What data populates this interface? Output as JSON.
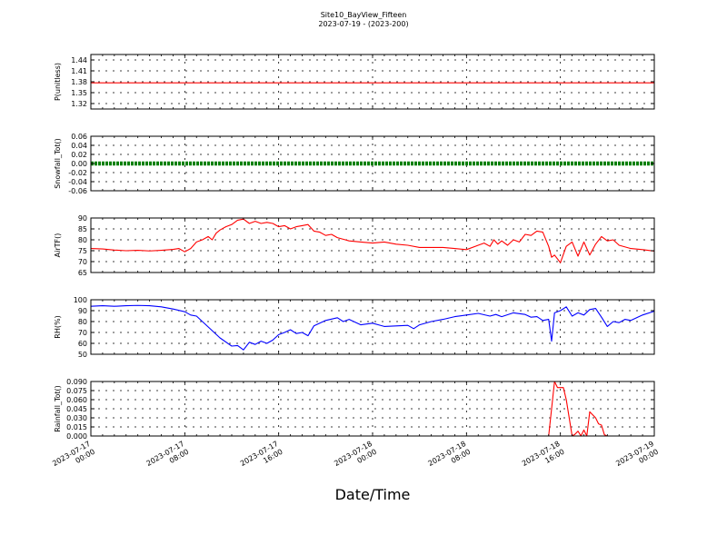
{
  "title": "Site10_BayView_Fifteen",
  "subtitle": "2023-07-19 - (2023-200)",
  "xlabel": "Date/Time",
  "x_ticks": [
    {
      "value": "2023-07-17 00:00",
      "line1": "2023-07-17",
      "line2": "00:00"
    },
    {
      "value": "2023-07-17 08:00",
      "line1": "2023-07-17",
      "line2": "08:00"
    },
    {
      "value": "2023-07-17 16:00",
      "line1": "2023-07-17",
      "line2": "16:00"
    },
    {
      "value": "2023-07-18 00:00",
      "line1": "2023-07-18",
      "line2": "00:00"
    },
    {
      "value": "2023-07-18 08:00",
      "line1": "2023-07-18",
      "line2": "08:00"
    },
    {
      "value": "2023-07-18 16:00",
      "line1": "2023-07-18",
      "line2": "16:00"
    },
    {
      "value": "2023-07-19 00:00",
      "line1": "2023-07-19",
      "line2": "00:00"
    }
  ],
  "x_range": [
    "2023-07-17 00:00",
    "2023-07-19 00:00"
  ],
  "chart_data": [
    {
      "type": "line",
      "ylabel": "P(unitless)",
      "ylim": [
        1.305,
        1.455
      ],
      "yticks": [
        1.32,
        1.35,
        1.38,
        1.41,
        1.44
      ],
      "tick_decimals": 2,
      "grid": true,
      "series": [
        {
          "color": "#ff0000",
          "marker": "none",
          "points": [
            [
              "2023-07-17 00:00",
              1.377
            ],
            [
              "2023-07-19 00:00",
              1.377
            ]
          ]
        }
      ]
    },
    {
      "type": "line",
      "ylabel": "Snowfall_Tot()",
      "ylim": [
        -0.06,
        0.06
      ],
      "yticks": [
        -0.06,
        -0.04,
        -0.02,
        0.0,
        0.02,
        0.04,
        0.06
      ],
      "tick_decimals": 2,
      "grid": true,
      "series": [
        {
          "color": "#008000",
          "marker": "dot",
          "points": [
            [
              "2023-07-17 00:00",
              0.0
            ],
            [
              "2023-07-19 00:00",
              0.0
            ]
          ]
        }
      ]
    },
    {
      "type": "line",
      "ylabel": "AirTF()",
      "ylim": [
        65,
        90
      ],
      "yticks": [
        65,
        70,
        75,
        80,
        85,
        90
      ],
      "tick_decimals": 0,
      "grid": true,
      "series": [
        {
          "color": "#ff0000",
          "marker": "none",
          "points": [
            [
              "2023-07-17 00:00",
              76.0
            ],
            [
              "2023-07-17 01:00",
              75.8
            ],
            [
              "2023-07-17 02:00",
              75.3
            ],
            [
              "2023-07-17 03:00",
              75.0
            ],
            [
              "2023-07-17 04:00",
              75.2
            ],
            [
              "2023-07-17 05:00",
              74.9
            ],
            [
              "2023-07-17 06:00",
              75.2
            ],
            [
              "2023-07-17 07:00",
              75.6
            ],
            [
              "2023-07-17 07:30",
              76.0
            ],
            [
              "2023-07-17 08:00",
              74.5
            ],
            [
              "2023-07-17 08:30",
              76.0
            ],
            [
              "2023-07-17 09:00",
              79.0
            ],
            [
              "2023-07-17 09:30",
              80.0
            ],
            [
              "2023-07-17 10:00",
              81.5
            ],
            [
              "2023-07-17 10:20",
              80.0
            ],
            [
              "2023-07-17 10:40",
              83.0
            ],
            [
              "2023-07-17 11:00",
              84.5
            ],
            [
              "2023-07-17 11:30",
              86.0
            ],
            [
              "2023-07-17 12:00",
              87.0
            ],
            [
              "2023-07-17 12:30",
              89.0
            ],
            [
              "2023-07-17 13:00",
              89.5
            ],
            [
              "2023-07-17 13:30",
              87.5
            ],
            [
              "2023-07-17 14:00",
              88.5
            ],
            [
              "2023-07-17 14:30",
              87.5
            ],
            [
              "2023-07-17 15:00",
              88.0
            ],
            [
              "2023-07-17 15:30",
              87.5
            ],
            [
              "2023-07-17 16:00",
              86.0
            ],
            [
              "2023-07-17 16:30",
              86.5
            ],
            [
              "2023-07-17 17:00",
              85.0
            ],
            [
              "2023-07-17 17:30",
              86.0
            ],
            [
              "2023-07-17 18:00",
              86.5
            ],
            [
              "2023-07-17 18:30",
              87.0
            ],
            [
              "2023-07-17 19:00",
              84.0
            ],
            [
              "2023-07-17 19:30",
              83.5
            ],
            [
              "2023-07-17 20:00",
              82.0
            ],
            [
              "2023-07-17 20:30",
              82.5
            ],
            [
              "2023-07-17 21:00",
              81.0
            ],
            [
              "2023-07-17 22:00",
              79.5
            ],
            [
              "2023-07-17 23:00",
              79.0
            ],
            [
              "2023-07-18 00:00",
              78.5
            ],
            [
              "2023-07-18 01:00",
              79.0
            ],
            [
              "2023-07-18 02:00",
              78.0
            ],
            [
              "2023-07-18 03:00",
              77.5
            ],
            [
              "2023-07-18 04:00",
              76.5
            ],
            [
              "2023-07-18 05:00",
              76.5
            ],
            [
              "2023-07-18 06:00",
              76.5
            ],
            [
              "2023-07-18 07:00",
              76.0
            ],
            [
              "2023-07-18 08:00",
              75.5
            ],
            [
              "2023-07-18 09:00",
              77.5
            ],
            [
              "2023-07-18 09:30",
              78.5
            ],
            [
              "2023-07-18 10:00",
              77.0
            ],
            [
              "2023-07-18 10:20",
              80.0
            ],
            [
              "2023-07-18 10:40",
              78.0
            ],
            [
              "2023-07-18 11:00",
              79.5
            ],
            [
              "2023-07-18 11:30",
              77.5
            ],
            [
              "2023-07-18 12:00",
              80.0
            ],
            [
              "2023-07-18 12:30",
              79.0
            ],
            [
              "2023-07-18 13:00",
              82.5
            ],
            [
              "2023-07-18 13:30",
              82.0
            ],
            [
              "2023-07-18 14:00",
              84.0
            ],
            [
              "2023-07-18 14:30",
              83.5
            ],
            [
              "2023-07-18 15:00",
              77.0
            ],
            [
              "2023-07-18 15:15",
              72.0
            ],
            [
              "2023-07-18 15:30",
              73.0
            ],
            [
              "2023-07-18 16:00",
              69.5
            ],
            [
              "2023-07-18 16:30",
              77.0
            ],
            [
              "2023-07-18 17:00",
              79.0
            ],
            [
              "2023-07-18 17:30",
              72.5
            ],
            [
              "2023-07-18 18:00",
              79.0
            ],
            [
              "2023-07-18 18:30",
              73.0
            ],
            [
              "2023-07-18 19:00",
              78.0
            ],
            [
              "2023-07-18 19:30",
              81.5
            ],
            [
              "2023-07-18 20:00",
              79.5
            ],
            [
              "2023-07-18 20:30",
              80.0
            ],
            [
              "2023-07-18 21:00",
              77.5
            ],
            [
              "2023-07-18 22:00",
              76.0
            ],
            [
              "2023-07-18 23:00",
              75.5
            ],
            [
              "2023-07-19 00:00",
              74.8
            ]
          ]
        }
      ]
    },
    {
      "type": "line",
      "ylabel": "RH(%)",
      "ylim": [
        50,
        100
      ],
      "yticks": [
        50,
        60,
        70,
        80,
        90,
        100
      ],
      "tick_decimals": 0,
      "grid": true,
      "series": [
        {
          "color": "#0000ff",
          "marker": "none",
          "points": [
            [
              "2023-07-17 00:00",
              94.0
            ],
            [
              "2023-07-17 01:00",
              94.5
            ],
            [
              "2023-07-17 02:00",
              94.0
            ],
            [
              "2023-07-17 03:00",
              94.5
            ],
            [
              "2023-07-17 04:00",
              94.8
            ],
            [
              "2023-07-17 05:00",
              94.5
            ],
            [
              "2023-07-17 06:00",
              93.5
            ],
            [
              "2023-07-17 07:00",
              91.5
            ],
            [
              "2023-07-17 08:00",
              89.0
            ],
            [
              "2023-07-17 08:30",
              86.0
            ],
            [
              "2023-07-17 09:00",
              85.0
            ],
            [
              "2023-07-17 10:00",
              75.0
            ],
            [
              "2023-07-17 11:00",
              65.0
            ],
            [
              "2023-07-17 12:00",
              57.5
            ],
            [
              "2023-07-17 12:30",
              58.0
            ],
            [
              "2023-07-17 13:00",
              54.0
            ],
            [
              "2023-07-17 13:30",
              61.0
            ],
            [
              "2023-07-17 14:00",
              59.0
            ],
            [
              "2023-07-17 14:30",
              62.0
            ],
            [
              "2023-07-17 15:00",
              60.0
            ],
            [
              "2023-07-17 15:30",
              63.0
            ],
            [
              "2023-07-17 16:00",
              68.0
            ],
            [
              "2023-07-17 16:30",
              70.0
            ],
            [
              "2023-07-17 17:00",
              72.5
            ],
            [
              "2023-07-17 17:30",
              69.0
            ],
            [
              "2023-07-17 18:00",
              70.0
            ],
            [
              "2023-07-17 18:30",
              67.0
            ],
            [
              "2023-07-17 19:00",
              76.0
            ],
            [
              "2023-07-17 20:00",
              81.0
            ],
            [
              "2023-07-17 21:00",
              83.5
            ],
            [
              "2023-07-17 21:30",
              80.0
            ],
            [
              "2023-07-17 22:00",
              82.0
            ],
            [
              "2023-07-17 23:00",
              77.0
            ],
            [
              "2023-07-18 00:00",
              78.5
            ],
            [
              "2023-07-18 00:30",
              77.0
            ],
            [
              "2023-07-18 01:00",
              75.5
            ],
            [
              "2023-07-18 02:00",
              76.0
            ],
            [
              "2023-07-18 03:00",
              76.5
            ],
            [
              "2023-07-18 03:30",
              73.5
            ],
            [
              "2023-07-18 04:00",
              77.0
            ],
            [
              "2023-07-18 05:00",
              80.0
            ],
            [
              "2023-07-18 06:00",
              82.0
            ],
            [
              "2023-07-18 07:00",
              84.5
            ],
            [
              "2023-07-18 08:00",
              86.0
            ],
            [
              "2023-07-18 09:00",
              87.5
            ],
            [
              "2023-07-18 10:00",
              85.0
            ],
            [
              "2023-07-18 10:30",
              86.5
            ],
            [
              "2023-07-18 11:00",
              84.5
            ],
            [
              "2023-07-18 12:00",
              88.0
            ],
            [
              "2023-07-18 13:00",
              86.5
            ],
            [
              "2023-07-18 13:30",
              84.0
            ],
            [
              "2023-07-18 14:00",
              84.5
            ],
            [
              "2023-07-18 14:30",
              81.0
            ],
            [
              "2023-07-18 15:00",
              82.0
            ],
            [
              "2023-07-18 15:15",
              62.0
            ],
            [
              "2023-07-18 15:30",
              88.0
            ],
            [
              "2023-07-18 16:00",
              90.0
            ],
            [
              "2023-07-18 16:30",
              93.5
            ],
            [
              "2023-07-18 17:00",
              85.0
            ],
            [
              "2023-07-18 17:30",
              88.0
            ],
            [
              "2023-07-18 18:00",
              86.0
            ],
            [
              "2023-07-18 18:30",
              91.0
            ],
            [
              "2023-07-18 19:00",
              92.0
            ],
            [
              "2023-07-18 19:30",
              84.0
            ],
            [
              "2023-07-18 20:00",
              75.5
            ],
            [
              "2023-07-18 20:30",
              80.0
            ],
            [
              "2023-07-18 21:00",
              79.0
            ],
            [
              "2023-07-18 21:30",
              82.0
            ],
            [
              "2023-07-18 22:00",
              81.0
            ],
            [
              "2023-07-18 22:30",
              83.5
            ],
            [
              "2023-07-18 23:00",
              86.0
            ],
            [
              "2023-07-19 00:00",
              89.5
            ]
          ]
        }
      ]
    },
    {
      "type": "line",
      "ylabel": "Rainfall_Tot()",
      "ylim": [
        0.0,
        0.09
      ],
      "yticks": [
        0.0,
        0.015,
        0.03,
        0.045,
        0.06,
        0.075,
        0.09
      ],
      "tick_decimals": 3,
      "grid": true,
      "series": [
        {
          "color": "#ff0000",
          "marker": "none",
          "points": [
            [
              "2023-07-17 00:00",
              0.0
            ],
            [
              "2023-07-18 15:00",
              0.0
            ],
            [
              "2023-07-18 15:30",
              0.09
            ],
            [
              "2023-07-18 15:45",
              0.08
            ],
            [
              "2023-07-18 16:15",
              0.08
            ],
            [
              "2023-07-18 16:30",
              0.06
            ],
            [
              "2023-07-18 17:00",
              0.0
            ],
            [
              "2023-07-18 17:15",
              0.003
            ],
            [
              "2023-07-18 17:30",
              0.008
            ],
            [
              "2023-07-18 17:45",
              0.0
            ],
            [
              "2023-07-18 18:00",
              0.01
            ],
            [
              "2023-07-18 18:15",
              0.0
            ],
            [
              "2023-07-18 18:30",
              0.04
            ],
            [
              "2023-07-18 19:00",
              0.03
            ],
            [
              "2023-07-18 19:15",
              0.02
            ],
            [
              "2023-07-18 19:30",
              0.018
            ],
            [
              "2023-07-18 19:45",
              0.002
            ],
            [
              "2023-07-18 20:00",
              0.0
            ],
            [
              "2023-07-19 00:00",
              0.0
            ]
          ]
        }
      ]
    }
  ]
}
